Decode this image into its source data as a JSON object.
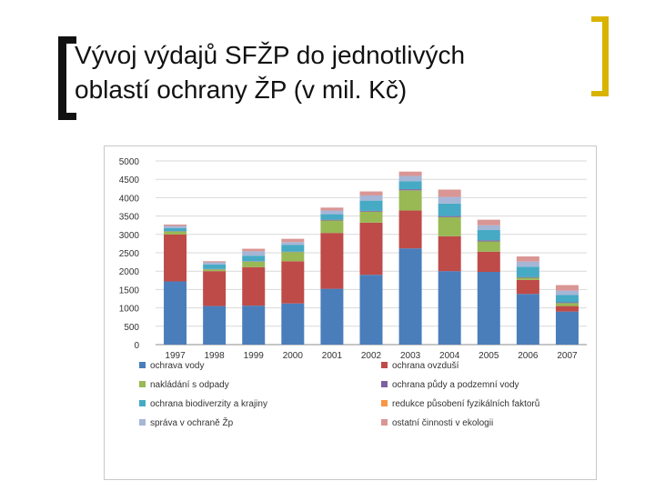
{
  "slide": {
    "title_line1": "Vývoj výdajů SFŽP do jednotlivých",
    "title_line2": "oblastí ochrany ŽP (v mil. Kč)"
  },
  "colors": {
    "bracket_left": "#111111",
    "bracket_right": "#d8b400"
  },
  "chart_data": {
    "type": "bar",
    "stacked": true,
    "title": "",
    "xlabel": "",
    "ylabel": "",
    "ylim": [
      0,
      5000
    ],
    "yticks": [
      0,
      500,
      1000,
      1500,
      2000,
      2500,
      3000,
      3500,
      4000,
      4500,
      5000
    ],
    "grid": true,
    "legend_placement": "bottom",
    "categories": [
      "1997",
      "1998",
      "1999",
      "2000",
      "2001",
      "2002",
      "2003",
      "2004",
      "2005",
      "2006",
      "2007"
    ],
    "series": [
      {
        "name": "ochrava vody",
        "color": "#4a7ebb",
        "values": [
          1720,
          1050,
          1060,
          1120,
          1520,
          1900,
          2620,
          2000,
          1980,
          1380,
          900
        ]
      },
      {
        "name": "ochrana ovzduší",
        "color": "#be4b48",
        "values": [
          1280,
          950,
          1050,
          1150,
          1520,
          1420,
          1030,
          950,
          550,
          380,
          150
        ]
      },
      {
        "name": "nakládání s odpady",
        "color": "#98b954",
        "values": [
          80,
          50,
          150,
          250,
          340,
          300,
          550,
          520,
          280,
          60,
          80
        ]
      },
      {
        "name": "ochrana půdy a podzemní vody",
        "color": "#7d60a0",
        "values": [
          10,
          10,
          10,
          10,
          20,
          20,
          30,
          30,
          30,
          20,
          20
        ]
      },
      {
        "name": "ochrana biodiverzity a krajiny",
        "color": "#46aac5",
        "values": [
          80,
          120,
          150,
          180,
          150,
          280,
          220,
          340,
          280,
          280,
          200
        ]
      },
      {
        "name": "redukce působení fyzikálních faktorů",
        "color": "#f79646",
        "values": [
          0,
          0,
          0,
          0,
          0,
          0,
          0,
          0,
          0,
          0,
          0
        ]
      },
      {
        "name": "správa v ochraně Žp",
        "color": "#a5b6d6",
        "values": [
          60,
          60,
          120,
          80,
          100,
          140,
          140,
          180,
          130,
          140,
          120
        ]
      },
      {
        "name": "ostatní činnosti v ekologii",
        "color": "#d99694",
        "values": [
          40,
          30,
          70,
          90,
          80,
          110,
          120,
          200,
          150,
          140,
          150
        ]
      }
    ]
  }
}
